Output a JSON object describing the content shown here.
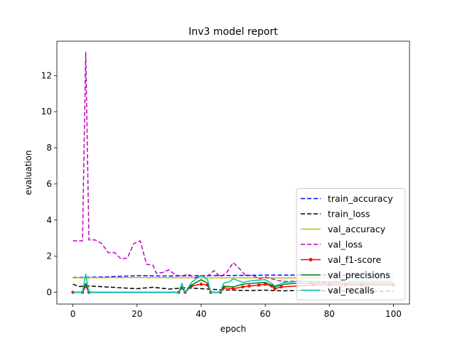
{
  "chart_data": {
    "type": "line",
    "title": "Inv3 model report",
    "xlabel": "epoch",
    "ylabel": "evaluation",
    "xlim": [
      -5,
      105
    ],
    "ylim": [
      -0.65,
      13.9
    ],
    "x_ticks": [
      0,
      20,
      40,
      60,
      80,
      100
    ],
    "y_ticks": [
      0,
      2,
      4,
      6,
      8,
      10,
      12
    ],
    "legend_position": "lower-right",
    "grid": false,
    "series": [
      {
        "name": "train_accuracy",
        "color": "#0000ff",
        "dash": "dashed",
        "marker": "none",
        "points": [
          [
            0,
            0.82
          ],
          [
            10,
            0.85
          ],
          [
            20,
            0.92
          ],
          [
            30,
            0.9
          ],
          [
            40,
            0.92
          ],
          [
            60,
            0.95
          ],
          [
            80,
            0.96
          ],
          [
            100,
            0.97
          ]
        ]
      },
      {
        "name": "train_loss",
        "color": "#000000",
        "dash": "dashed",
        "marker": "none",
        "points": [
          [
            0,
            0.45
          ],
          [
            2,
            0.32
          ],
          [
            5,
            0.35
          ],
          [
            10,
            0.3
          ],
          [
            15,
            0.25
          ],
          [
            20,
            0.2
          ],
          [
            25,
            0.28
          ],
          [
            30,
            0.18
          ],
          [
            35,
            0.25
          ],
          [
            40,
            0.2
          ],
          [
            45,
            0.15
          ],
          [
            50,
            0.12
          ],
          [
            55,
            0.1
          ],
          [
            60,
            0.12
          ],
          [
            65,
            0.08
          ],
          [
            70,
            0.1
          ],
          [
            80,
            0.08
          ],
          [
            90,
            0.07
          ],
          [
            100,
            0.06
          ]
        ]
      },
      {
        "name": "val_accuracy",
        "color": "#bfbf00",
        "dash": "solid",
        "marker": "none",
        "points": [
          [
            0,
            0.8
          ],
          [
            20,
            0.82
          ],
          [
            40,
            0.8
          ],
          [
            60,
            0.8
          ],
          [
            80,
            0.8
          ],
          [
            100,
            0.8
          ]
        ]
      },
      {
        "name": "val_loss",
        "color": "#bf00bf",
        "dash": "dashed",
        "marker": "none",
        "points": [
          [
            0,
            2.85
          ],
          [
            3,
            2.85
          ],
          [
            4,
            13.3
          ],
          [
            5,
            2.9
          ],
          [
            7,
            2.9
          ],
          [
            9,
            2.7
          ],
          [
            11,
            2.2
          ],
          [
            13,
            2.2
          ],
          [
            15,
            1.85
          ],
          [
            17,
            1.9
          ],
          [
            19,
            2.7
          ],
          [
            21,
            2.85
          ],
          [
            23,
            1.55
          ],
          [
            25,
            1.5
          ],
          [
            26,
            1.05
          ],
          [
            28,
            1.1
          ],
          [
            30,
            1.25
          ],
          [
            32,
            0.95
          ],
          [
            34,
            0.9
          ],
          [
            36,
            1.0
          ],
          [
            38,
            0.8
          ],
          [
            40,
            0.9
          ],
          [
            42,
            0.9
          ],
          [
            44,
            1.2
          ],
          [
            46,
            0.85
          ],
          [
            48,
            1.1
          ],
          [
            50,
            1.65
          ],
          [
            52,
            1.3
          ],
          [
            54,
            0.9
          ],
          [
            56,
            0.95
          ],
          [
            58,
            0.75
          ],
          [
            60,
            0.85
          ],
          [
            64,
            0.65
          ],
          [
            66,
            0.6
          ],
          [
            68,
            0.6
          ],
          [
            70,
            0.65
          ],
          [
            75,
            0.55
          ],
          [
            80,
            0.55
          ],
          [
            85,
            0.5
          ],
          [
            90,
            0.5
          ],
          [
            100,
            0.5
          ]
        ]
      },
      {
        "name": "val_f1-score",
        "color": "#ff0000",
        "dash": "solid",
        "marker": "dot",
        "points": [
          [
            0,
            0.0
          ],
          [
            3,
            0.0
          ],
          [
            4,
            0.35
          ],
          [
            5,
            0.0
          ],
          [
            33,
            0.0
          ],
          [
            34,
            0.25
          ],
          [
            35,
            0.0
          ],
          [
            37,
            0.35
          ],
          [
            40,
            0.45
          ],
          [
            42,
            0.4
          ],
          [
            43,
            0.0
          ],
          [
            46,
            0.0
          ],
          [
            47,
            0.25
          ],
          [
            50,
            0.2
          ],
          [
            53,
            0.3
          ],
          [
            55,
            0.35
          ],
          [
            58,
            0.4
          ],
          [
            60,
            0.45
          ],
          [
            62,
            0.35
          ],
          [
            63,
            0.2
          ],
          [
            65,
            0.3
          ],
          [
            70,
            0.35
          ],
          [
            75,
            0.4
          ],
          [
            80,
            0.4
          ],
          [
            85,
            0.4
          ],
          [
            90,
            0.4
          ],
          [
            100,
            0.4
          ]
        ]
      },
      {
        "name": "val_precisions",
        "color": "#008000",
        "dash": "solid",
        "marker": "none",
        "points": [
          [
            0,
            0.0
          ],
          [
            3,
            0.0
          ],
          [
            4,
            0.5
          ],
          [
            5,
            0.0
          ],
          [
            33,
            0.0
          ],
          [
            34,
            0.3
          ],
          [
            35,
            0.0
          ],
          [
            37,
            0.4
          ],
          [
            40,
            0.7
          ],
          [
            42,
            0.5
          ],
          [
            43,
            0.0
          ],
          [
            46,
            0.0
          ],
          [
            47,
            0.35
          ],
          [
            50,
            0.3
          ],
          [
            53,
            0.45
          ],
          [
            56,
            0.5
          ],
          [
            60,
            0.55
          ],
          [
            62,
            0.4
          ],
          [
            63,
            0.3
          ],
          [
            66,
            0.45
          ],
          [
            70,
            0.5
          ],
          [
            80,
            0.5
          ],
          [
            90,
            0.5
          ],
          [
            100,
            0.5
          ]
        ]
      },
      {
        "name": "val_recalls",
        "color": "#00bfbf",
        "dash": "solid",
        "marker": "none",
        "points": [
          [
            0,
            0.0
          ],
          [
            3,
            0.0
          ],
          [
            4,
            1.0
          ],
          [
            5,
            0.0
          ],
          [
            33,
            0.0
          ],
          [
            34,
            0.5
          ],
          [
            35,
            0.0
          ],
          [
            37,
            0.55
          ],
          [
            40,
            0.95
          ],
          [
            42,
            0.7
          ],
          [
            43,
            0.0
          ],
          [
            46,
            0.0
          ],
          [
            47,
            0.5
          ],
          [
            49,
            0.6
          ],
          [
            50,
            0.75
          ],
          [
            53,
            0.55
          ],
          [
            56,
            0.65
          ],
          [
            60,
            0.7
          ],
          [
            62,
            0.5
          ],
          [
            63,
            0.35
          ],
          [
            66,
            0.55
          ],
          [
            70,
            0.6
          ],
          [
            80,
            0.6
          ],
          [
            90,
            0.6
          ],
          [
            100,
            0.6
          ]
        ]
      }
    ]
  }
}
